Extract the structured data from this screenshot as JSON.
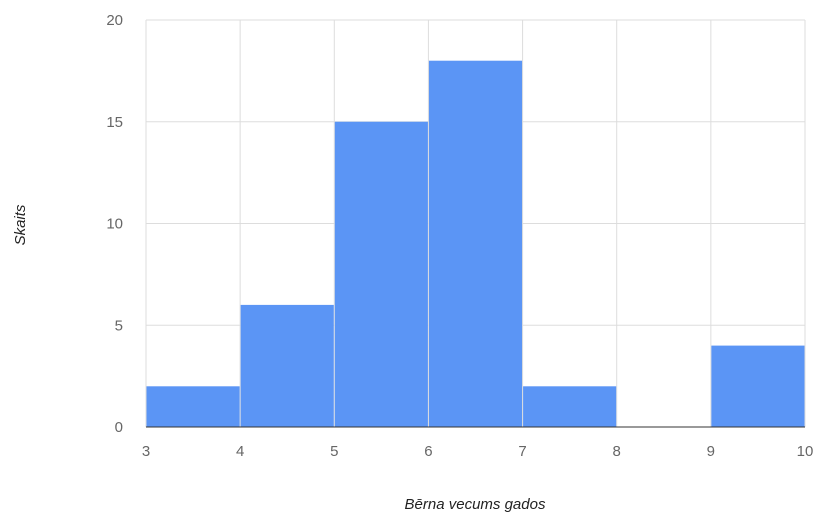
{
  "chart_data": {
    "type": "bar",
    "subtype": "histogram",
    "bins": [
      {
        "from": 3,
        "to": 4,
        "value": 2
      },
      {
        "from": 4,
        "to": 5,
        "value": 6
      },
      {
        "from": 5,
        "to": 6,
        "value": 15
      },
      {
        "from": 6,
        "to": 7,
        "value": 18
      },
      {
        "from": 7,
        "to": 8,
        "value": 2
      },
      {
        "from": 8,
        "to": 9,
        "value": 0
      },
      {
        "from": 9,
        "to": 10,
        "value": 4
      }
    ],
    "xlabel": "Bērna vecums gados",
    "ylabel": "Skaits",
    "xlim": [
      3,
      10
    ],
    "ylim": [
      0,
      20
    ],
    "x_ticks": [
      "3",
      "4",
      "5",
      "6",
      "7",
      "8",
      "9",
      "10"
    ],
    "y_ticks": [
      "0",
      "5",
      "10",
      "15",
      "20"
    ],
    "bar_color": "#5b95f5",
    "grid": true,
    "legend": "none"
  }
}
